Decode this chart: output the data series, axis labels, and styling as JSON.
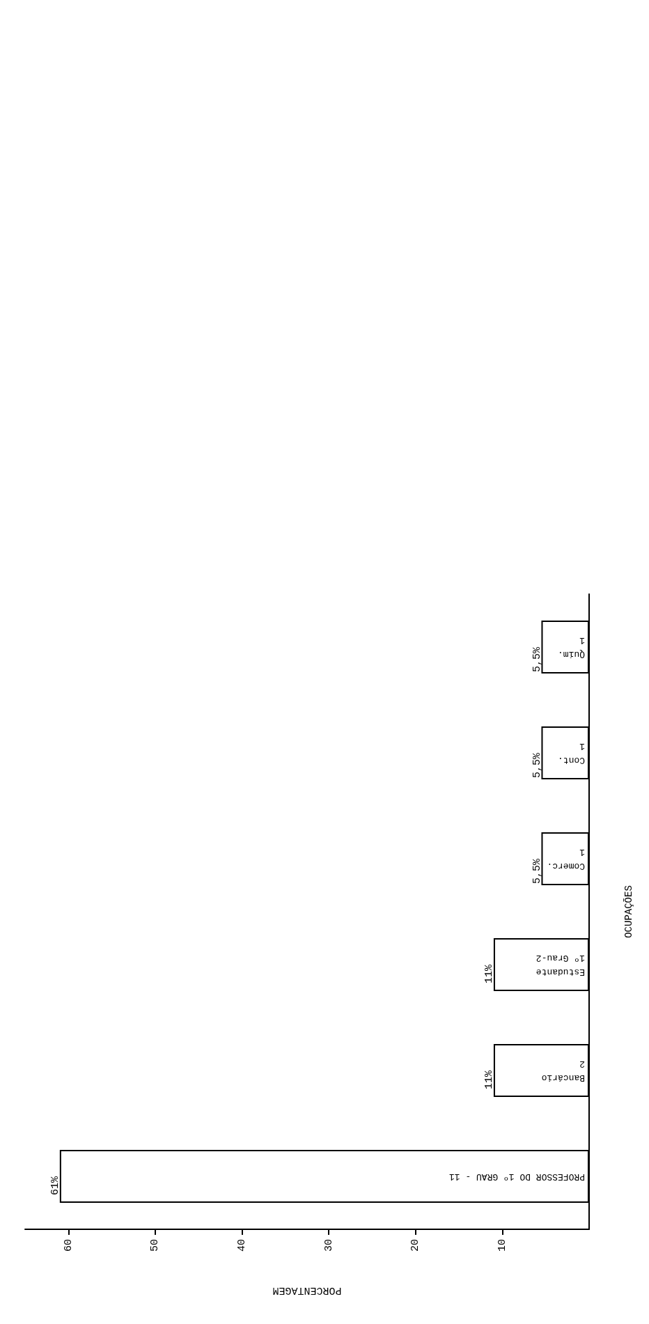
{
  "chart_data": {
    "type": "bar",
    "orientation": "horizontal",
    "xlabel": "PORCENTAGEM",
    "ylabel": "OCUPAÇÕES",
    "categories": [
      "Quím.\n1",
      "Cont.\n1",
      "Comerc.\n1",
      "Estudante\n1º Grau-2",
      "Bancário\n2",
      "PROFESSOR DO 1º GRAU - 11"
    ],
    "values": [
      5.5,
      5.5,
      5.5,
      11,
      11,
      61
    ],
    "value_labels": [
      "5,5%",
      "5,5%",
      "5,5%",
      "11%",
      "11%",
      "61%"
    ],
    "color": "#ffffff",
    "xlim": [
      65,
      0
    ],
    "xticks": [
      10,
      20,
      30,
      40,
      50,
      60
    ]
  }
}
